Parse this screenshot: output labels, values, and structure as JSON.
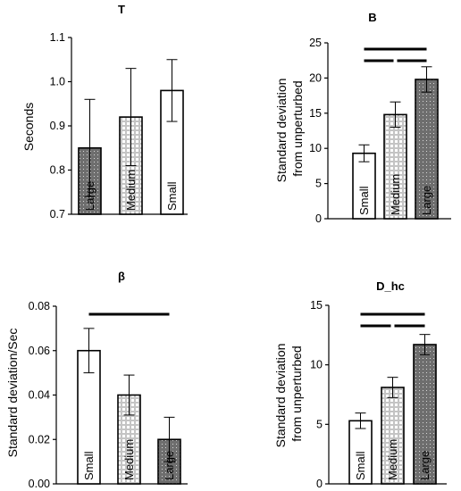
{
  "chart_data": [
    {
      "type": "bar",
      "title": "T",
      "ylabel": "Seconds",
      "ylim": [
        0.7,
        1.1
      ],
      "yticks": [
        "0.7",
        "0.8",
        "0.9",
        "1.0",
        "1.1"
      ],
      "categories": [
        "Large",
        "Medium",
        "Small"
      ],
      "values": [
        0.85,
        0.92,
        0.98
      ],
      "errors": [
        0.11,
        0.11,
        0.07
      ],
      "fills": [
        "dots",
        "grid",
        "plain"
      ],
      "sig_bars": []
    },
    {
      "type": "bar",
      "title": "B",
      "ylabel": [
        "Standard deviation",
        "from unperturbed"
      ],
      "ylim": [
        0,
        25
      ],
      "yticks": [
        "0",
        "5",
        "10",
        "15",
        "20",
        "25"
      ],
      "categories": [
        "Small",
        "Medium",
        "Large"
      ],
      "values": [
        9.3,
        14.8,
        19.8
      ],
      "errors": [
        1.2,
        1.8,
        1.8
      ],
      "fills": [
        "plain",
        "grid",
        "dots"
      ],
      "sig_bars": [
        [
          0,
          2
        ],
        [
          0,
          1
        ],
        [
          1,
          2
        ]
      ]
    },
    {
      "type": "bar",
      "title": "β",
      "ylabel": "Standard deviation/Sec",
      "ylim": [
        0,
        0.08
      ],
      "yticks": [
        "0.00",
        "0.02",
        "0.04",
        "0.06",
        "0.08"
      ],
      "categories": [
        "Small",
        "Medium",
        "Large"
      ],
      "values": [
        0.06,
        0.04,
        0.02
      ],
      "errors": [
        0.01,
        0.009,
        0.01
      ],
      "fills": [
        "plain",
        "grid",
        "dots"
      ],
      "sig_bars": [
        [
          0,
          2
        ]
      ]
    },
    {
      "type": "bar",
      "title": "D_hc",
      "ylabel": [
        "Standard deviation",
        "from unperturbed"
      ],
      "ylim": [
        0,
        15
      ],
      "yticks": [
        "0",
        "5",
        "10",
        "15"
      ],
      "categories": [
        "Small",
        "Medium",
        "Large"
      ],
      "values": [
        5.3,
        8.1,
        11.7
      ],
      "errors": [
        0.65,
        0.85,
        0.85
      ],
      "fills": [
        "plain",
        "grid",
        "dots"
      ],
      "sig_bars": [
        [
          0,
          2
        ],
        [
          0,
          1
        ],
        [
          1,
          2
        ]
      ]
    }
  ]
}
